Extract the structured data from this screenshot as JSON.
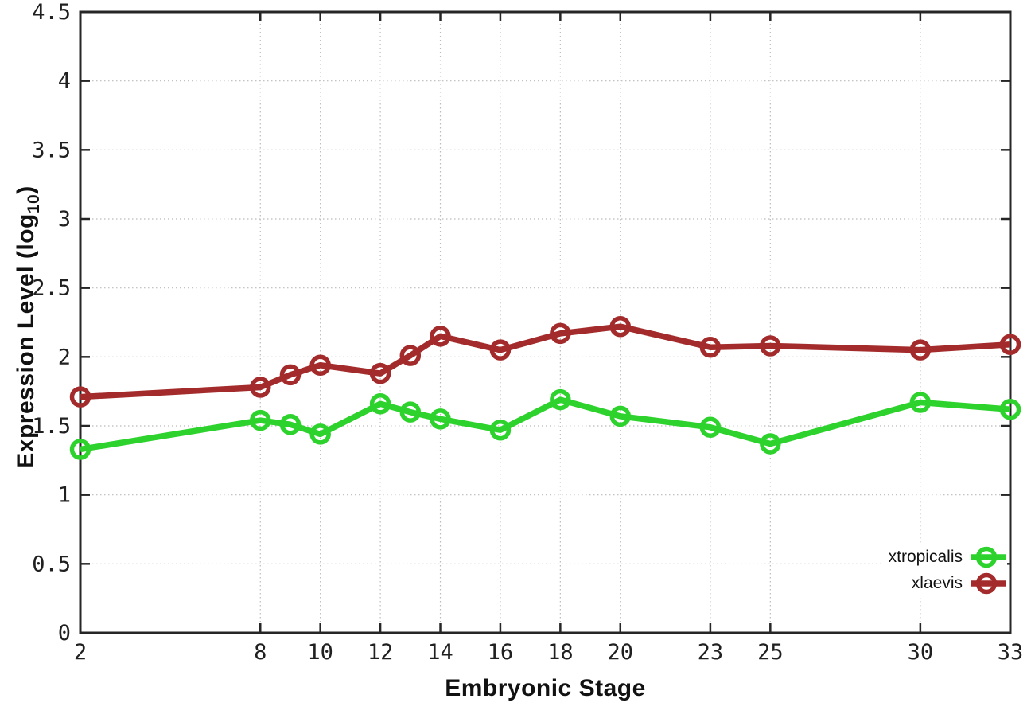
{
  "chart_data": {
    "type": "line",
    "title": "",
    "xlabel": "Embryonic Stage",
    "ylabel": "Expression Level (log10)",
    "ylabel_parts": {
      "prefix": "Expression Level (log",
      "sub": "10",
      "suffix": ")"
    },
    "xlim": [
      2,
      33
    ],
    "ylim": [
      0,
      4.5
    ],
    "grid": true,
    "legend_position": "bottom-right-inside",
    "x_ticks": [
      2,
      8,
      10,
      12,
      14,
      16,
      18,
      20,
      23,
      25,
      30,
      33
    ],
    "x_tick_labels": [
      "2",
      "8",
      "10",
      "12",
      "14",
      "16",
      "18",
      "20",
      "23",
      "25",
      "30",
      "33"
    ],
    "y_ticks": [
      0,
      0.5,
      1,
      1.5,
      2,
      2.5,
      3,
      3.5,
      4,
      4.5
    ],
    "y_tick_labels": [
      "0",
      "0.5",
      "1",
      "1.5",
      "2",
      "2.5",
      "3",
      "3.5",
      "4",
      "4.5"
    ],
    "x": [
      2,
      8,
      9,
      10,
      12,
      13,
      14,
      16,
      18,
      20,
      23,
      25,
      30,
      33
    ],
    "series": [
      {
        "name": "xtropicalis",
        "color": "#2dd22d",
        "values": [
          1.33,
          1.54,
          1.51,
          1.44,
          1.66,
          1.6,
          1.55,
          1.47,
          1.69,
          1.57,
          1.49,
          1.37,
          1.67,
          1.62
        ]
      },
      {
        "name": "xlaevis",
        "color": "#a32b2b",
        "values": [
          1.71,
          1.78,
          1.87,
          1.94,
          1.88,
          2.01,
          2.15,
          2.05,
          2.17,
          2.22,
          2.07,
          2.08,
          2.05,
          2.09
        ]
      }
    ],
    "marker": "open-circle"
  },
  "style": {
    "background": "#ffffff",
    "border_color": "#262626",
    "grid_color": "#bbbbbb",
    "tick_text_color": "#202020",
    "title_text_color": "#111111"
  }
}
